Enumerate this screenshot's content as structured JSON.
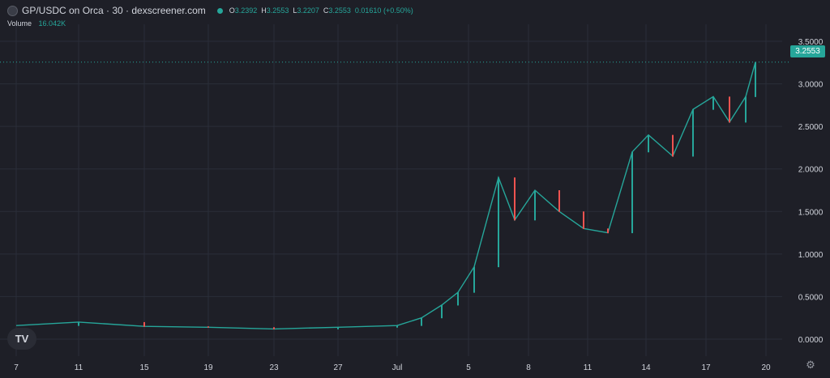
{
  "header": {
    "title": "GP/USDC on Orca · 30 · dexscreener.com",
    "ohlc": [
      {
        "k": "O",
        "v": "3.2392"
      },
      {
        "k": "H",
        "v": "3.2553"
      },
      {
        "k": "L",
        "v": "3.2207"
      },
      {
        "k": "C",
        "v": "3.2553"
      }
    ],
    "change": "0.01610 (+0.50%)"
  },
  "volume": {
    "label": "Volume",
    "value": "16.042K"
  },
  "last_price_label": "3.2553",
  "logo_text": "TV",
  "colors": {
    "up": "#26a69a",
    "down": "#ef5350",
    "bg": "#1e1f27",
    "grid": "#2a2e39",
    "text": "#d1d4dc"
  },
  "chart_data": {
    "type": "line",
    "grid": true,
    "ylim": [
      -0.2,
      3.7
    ],
    "y_ticks": [
      "3.5000",
      "3.0000",
      "2.5000",
      "2.0000",
      "1.5000",
      "1.0000",
      "0.5000",
      "0.0000"
    ],
    "x_ticks": [
      "7",
      "11",
      "15",
      "19",
      "23",
      "27",
      "Jul",
      "5",
      "8",
      "11",
      "14",
      "17",
      "20"
    ],
    "last_price": 3.2553,
    "series": [
      {
        "x": [
          "7",
          "11",
          "15",
          "19",
          "23",
          "27",
          "Jul",
          "2",
          "3",
          "4",
          "5",
          "6",
          "7",
          "8",
          "9",
          "10",
          "11",
          "12",
          "13",
          "14",
          "15",
          "16",
          "17",
          "18",
          "19"
        ],
        "values": [
          0.16,
          0.2,
          0.15,
          0.14,
          0.12,
          0.14,
          0.16,
          0.25,
          0.4,
          0.55,
          0.85,
          1.9,
          1.4,
          1.75,
          1.5,
          1.3,
          1.25,
          2.2,
          2.4,
          2.15,
          2.7,
          2.85,
          2.55,
          2.85,
          3.2553
        ]
      }
    ]
  }
}
